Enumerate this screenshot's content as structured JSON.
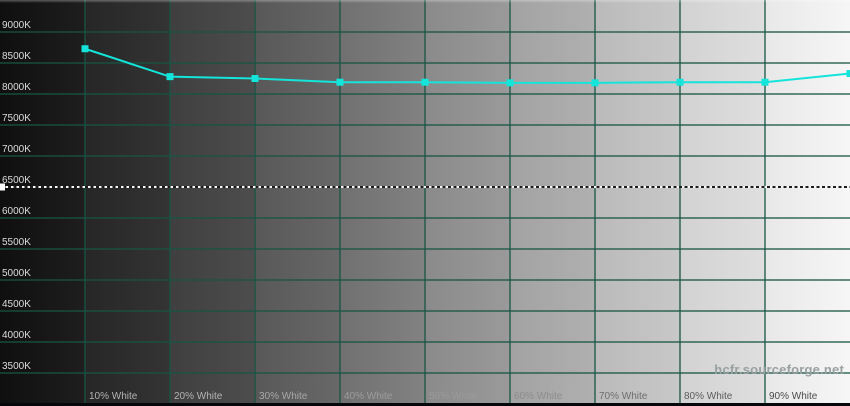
{
  "chart_data": {
    "type": "line",
    "title": "",
    "xlabel": "",
    "ylabel": "",
    "x": [
      10,
      20,
      30,
      40,
      50,
      60,
      70,
      80,
      90,
      100
    ],
    "values": [
      8730,
      8280,
      8250,
      8190,
      8190,
      8180,
      8180,
      8190,
      8190,
      8330
    ],
    "xlim": [
      0,
      100
    ],
    "ylim": [
      3500,
      9000
    ],
    "grid": true,
    "legend_position": "none",
    "line_color": "#14e4da",
    "marker": "square",
    "grid_color": "rgba(24, 84, 68, 0.65)",
    "reference_line": {
      "value": 6500,
      "color": "#f8f8f8",
      "dark_color": "#1c1c1c",
      "style": "dotted"
    },
    "y_ticks": [
      {
        "label": "9000K",
        "value": 9000
      },
      {
        "label": "8500K",
        "value": 8500
      },
      {
        "label": "8000K",
        "value": 8000
      },
      {
        "label": "7500K",
        "value": 7500
      },
      {
        "label": "7000K",
        "value": 7000
      },
      {
        "label": "6500K",
        "value": 6500
      },
      {
        "label": "6000K",
        "value": 6000
      },
      {
        "label": "5500K",
        "value": 5500
      },
      {
        "label": "5000K",
        "value": 5000
      },
      {
        "label": "4500K",
        "value": 4500
      },
      {
        "label": "4000K",
        "value": 4000
      },
      {
        "label": "3500K",
        "value": 3500
      }
    ],
    "x_ticks": [
      {
        "label": "10% White",
        "value": 10,
        "color": "#b4b4b4"
      },
      {
        "label": "20% White",
        "value": 20,
        "color": "#b4b4b4"
      },
      {
        "label": "30% White",
        "value": 30,
        "color": "#a8a8a8"
      },
      {
        "label": "40% White",
        "value": 40,
        "color": "#9c9c9c"
      },
      {
        "label": "50% White",
        "value": 50,
        "color": "#9a9a9a"
      },
      {
        "label": "60% White",
        "value": 60,
        "color": "#8c8c8c"
      },
      {
        "label": "70% White",
        "value": 70,
        "color": "#6e6e6e"
      },
      {
        "label": "80% White",
        "value": 80,
        "color": "#5c5c5c"
      },
      {
        "label": "90% White",
        "value": 90,
        "color": "#4c4c4c"
      }
    ],
    "background_bands": [
      {
        "from": "#0f0f0f",
        "to": "#1e1e1e"
      },
      {
        "from": "#262626",
        "to": "#343434"
      },
      {
        "from": "#3f3f3f",
        "to": "#4d4d4d"
      },
      {
        "from": "#585858",
        "to": "#686868"
      },
      {
        "from": "#707070",
        "to": "#828282"
      },
      {
        "from": "#8a8a8a",
        "to": "#9a9a9a"
      },
      {
        "from": "#a2a2a2",
        "to": "#b0b0b0"
      },
      {
        "from": "#bababa",
        "to": "#c8c8c8"
      },
      {
        "from": "#d2d2d2",
        "to": "#dfdfdf"
      },
      {
        "from": "#e8e8e8",
        "to": "#f6f6f6"
      }
    ]
  },
  "watermark": {
    "text": "hcfr.sourceforge.net",
    "color": "#98a0a0"
  }
}
